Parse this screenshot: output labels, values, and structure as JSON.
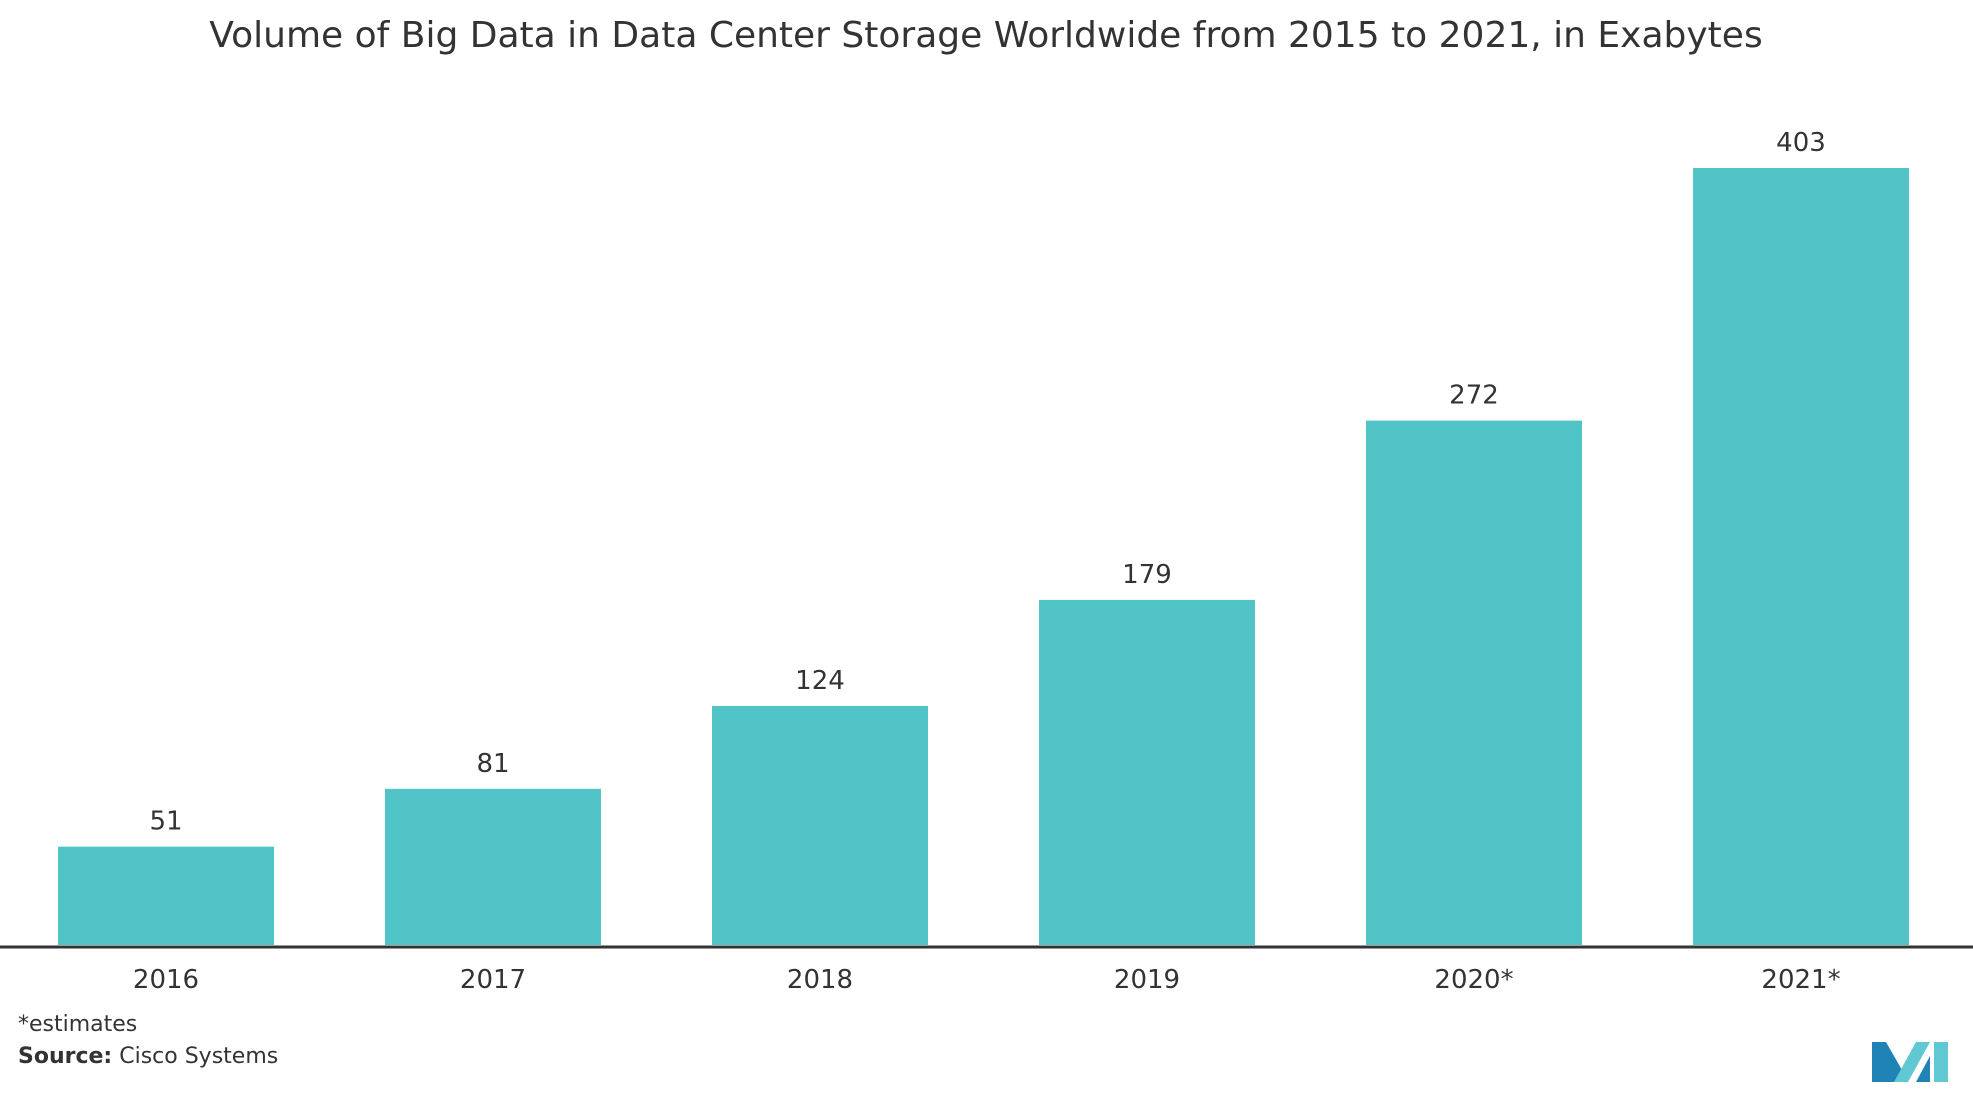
{
  "chart_data": {
    "type": "bar",
    "title": "Volume of Big Data in Data Center Storage Worldwide from 2015 to 2021, in Exabytes",
    "categories": [
      "2016",
      "2017",
      "2018",
      "2019",
      "2020*",
      "2021*"
    ],
    "values": [
      51,
      81,
      124,
      179,
      272,
      403
    ],
    "data_labels": [
      "51",
      "81",
      "124",
      "179",
      "272",
      "403"
    ],
    "xlabel": "",
    "ylabel": "",
    "ylim": [
      0,
      403
    ],
    "grid": false,
    "legend": "none",
    "bar_color": "#51c4c8",
    "axis_color": "#333333"
  },
  "footnote": {
    "estimates": "*estimates",
    "source_label": "Source:",
    "source_value": " Cisco Systems"
  },
  "logo": {
    "colors": [
      "#1f84b5",
      "#5fc8d3"
    ]
  }
}
